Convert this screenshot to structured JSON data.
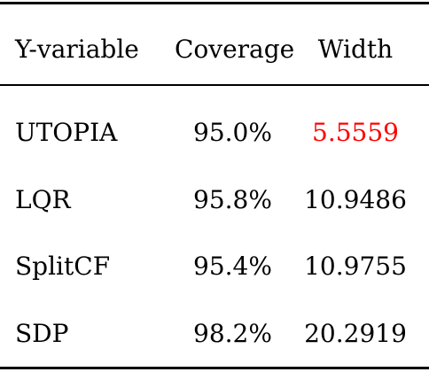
{
  "table": {
    "headers": [
      "Y-variable",
      "Coverage",
      "Width"
    ],
    "rows": [
      {
        "name": "UTOPIA",
        "coverage": "95.0%",
        "width": "5.5559"
      },
      {
        "name": "LQR",
        "coverage": "95.8%",
        "width": "10.9486"
      },
      {
        "name": "SplitCF",
        "coverage": "95.4%",
        "width": "10.9755"
      },
      {
        "name": "SDP",
        "coverage": "98.2%",
        "width": "20.2919"
      }
    ],
    "highlight_color": "#ff0000"
  }
}
